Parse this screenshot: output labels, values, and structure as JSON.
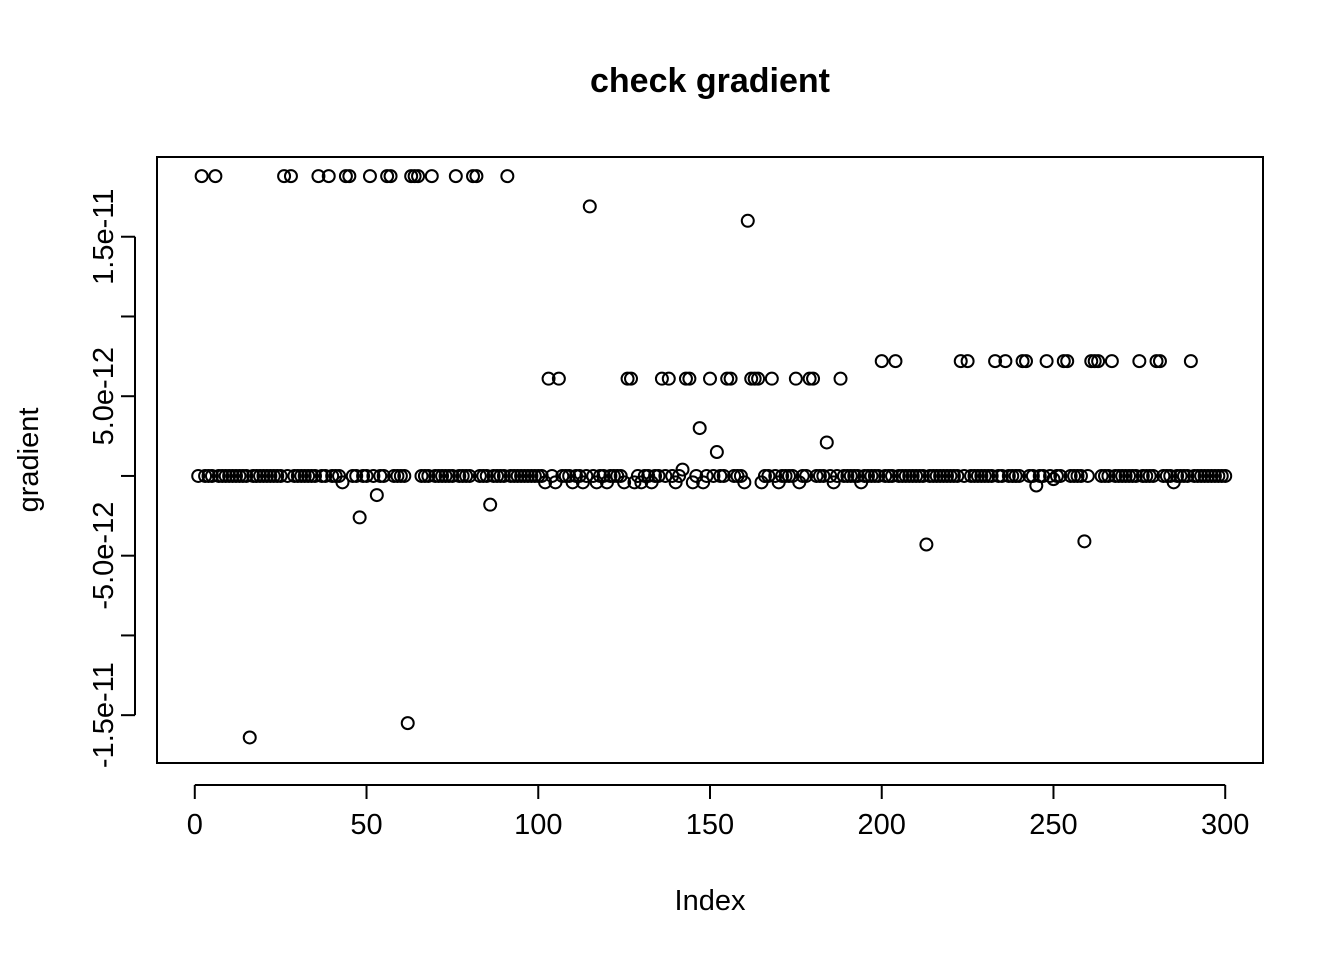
{
  "chart_data": {
    "type": "scatter",
    "title": "check gradient",
    "xlabel": "Index",
    "ylabel": "gradient",
    "xlim": [
      -11,
      311
    ],
    "ylim": [
      -1.8e-11,
      2e-11
    ],
    "x_ticks": [
      0,
      50,
      100,
      150,
      200,
      250,
      300
    ],
    "x_tick_labels": [
      "0",
      "50",
      "100",
      "150",
      "200",
      "250",
      "300"
    ],
    "y_ticks": [
      -1.5e-11,
      -1e-11,
      -5e-12,
      0,
      5e-12,
      1e-11,
      1.5e-11
    ],
    "y_tick_labels": [
      "-1.5e-11",
      "",
      "-5.0e-12",
      "",
      "5.0e-12",
      "",
      "1.5e-11"
    ],
    "grid": false,
    "series": [
      {
        "point_style": "open-circle",
        "x": [
          1,
          2,
          3,
          4,
          5,
          6,
          7,
          8,
          9,
          10,
          11,
          12,
          13,
          14,
          15,
          16,
          17,
          18,
          19,
          20,
          21,
          22,
          23,
          24,
          25,
          26,
          27,
          28,
          29,
          30,
          31,
          32,
          33,
          34,
          35,
          36,
          37,
          38,
          39,
          40,
          41,
          42,
          43,
          44,
          45,
          46,
          47,
          48,
          49,
          50,
          51,
          52,
          53,
          54,
          55,
          56,
          57,
          58,
          59,
          60,
          61,
          62,
          63,
          64,
          65,
          66,
          67,
          68,
          69,
          70,
          71,
          72,
          73,
          74,
          75,
          76,
          77,
          78,
          79,
          80,
          81,
          82,
          83,
          84,
          85,
          86,
          87,
          88,
          89,
          90,
          91,
          92,
          93,
          94,
          95,
          96,
          97,
          98,
          99,
          100,
          101,
          102,
          103,
          104,
          105,
          106,
          107,
          108,
          109,
          110,
          111,
          112,
          113,
          114,
          115,
          116,
          117,
          118,
          119,
          120,
          121,
          122,
          123,
          124,
          125,
          126,
          127,
          128,
          129,
          130,
          131,
          132,
          133,
          134,
          135,
          136,
          137,
          138,
          139,
          140,
          141,
          142,
          143,
          144,
          145,
          146,
          147,
          148,
          149,
          150,
          151,
          152,
          153,
          154,
          155,
          156,
          157,
          158,
          159,
          160,
          161,
          162,
          163,
          164,
          165,
          166,
          167,
          168,
          169,
          170,
          171,
          172,
          173,
          174,
          175,
          176,
          177,
          178,
          179,
          180,
          181,
          182,
          183,
          184,
          185,
          186,
          187,
          188,
          189,
          190,
          191,
          192,
          193,
          194,
          195,
          196,
          197,
          198,
          199,
          200,
          201,
          202,
          203,
          204,
          205,
          206,
          207,
          208,
          209,
          210,
          211,
          212,
          213,
          214,
          215,
          216,
          217,
          218,
          219,
          220,
          221,
          222,
          223,
          224,
          225,
          226,
          227,
          228,
          229,
          230,
          231,
          232,
          233,
          234,
          235,
          236,
          237,
          238,
          239,
          240,
          241,
          242,
          243,
          244,
          245,
          246,
          247,
          248,
          249,
          250,
          251,
          252,
          253,
          254,
          255,
          256,
          257,
          258,
          259,
          260,
          261,
          262,
          263,
          264,
          265,
          266,
          267,
          268,
          269,
          270,
          271,
          272,
          273,
          274,
          275,
          276,
          277,
          278,
          279,
          280,
          281,
          282,
          283,
          284,
          285,
          286,
          287,
          288,
          289,
          290,
          291,
          292,
          293,
          294,
          295,
          296,
          297,
          298,
          299,
          300
        ],
        "y": [
          0,
          1.88e-11,
          0,
          0,
          0,
          1.88e-11,
          0,
          0,
          0,
          0,
          0,
          0,
          0,
          0,
          0,
          -1.64e-11,
          0,
          0,
          0,
          0,
          0,
          0,
          0,
          0,
          0,
          1.88e-11,
          0,
          1.88e-11,
          0,
          0,
          0,
          0,
          0,
          0,
          0,
          1.88e-11,
          0,
          0,
          1.88e-11,
          0,
          0,
          0,
          -4e-13,
          1.88e-11,
          1.88e-11,
          0,
          0,
          -2.6e-12,
          0,
          0,
          1.88e-11,
          0,
          -1.2e-12,
          0,
          0,
          1.88e-11,
          1.88e-11,
          0,
          0,
          0,
          0,
          -1.55e-11,
          1.88e-11,
          1.88e-11,
          1.88e-11,
          0,
          0,
          0,
          1.88e-11,
          0,
          0,
          0,
          0,
          0,
          0,
          1.88e-11,
          0,
          0,
          0,
          0,
          1.88e-11,
          1.88e-11,
          0,
          0,
          0,
          -1.8e-12,
          0,
          0,
          0,
          0,
          1.88e-11,
          0,
          0,
          0,
          0,
          0,
          0,
          0,
          0,
          0,
          0,
          -4e-13,
          6.1e-12,
          0,
          -4e-13,
          6.1e-12,
          0,
          0,
          0,
          -4e-13,
          0,
          0,
          -4e-13,
          0,
          1.69e-11,
          0,
          -4e-13,
          0,
          0,
          -4e-13,
          0,
          0,
          0,
          0,
          -4e-13,
          6.1e-12,
          6.1e-12,
          -4e-13,
          0,
          -4e-13,
          0,
          0,
          -4e-13,
          0,
          0,
          6.1e-12,
          0,
          6.1e-12,
          0,
          -4e-13,
          0,
          4e-13,
          6.1e-12,
          6.1e-12,
          -4e-13,
          0,
          3e-12,
          -4e-13,
          0,
          6.1e-12,
          0,
          1.5e-12,
          0,
          0,
          6.1e-12,
          6.1e-12,
          0,
          0,
          0,
          -4e-13,
          1.6e-11,
          6.1e-12,
          6.1e-12,
          6.1e-12,
          -4e-13,
          0,
          0,
          6.1e-12,
          0,
          -4e-13,
          0,
          0,
          0,
          0,
          6.1e-12,
          -4e-13,
          0,
          0,
          6.1e-12,
          6.1e-12,
          0,
          0,
          0,
          2.1e-12,
          0,
          -4e-13,
          0,
          6.1e-12,
          0,
          0,
          0,
          0,
          0,
          -4e-13,
          0,
          0,
          0,
          0,
          0,
          7.2e-12,
          0,
          0,
          0,
          7.2e-12,
          0,
          0,
          0,
          0,
          0,
          0,
          0,
          0,
          -4.3e-12,
          0,
          0,
          0,
          0,
          0,
          0,
          0,
          0,
          0,
          7.2e-12,
          0,
          7.2e-12,
          0,
          0,
          0,
          0,
          0,
          0,
          0,
          7.2e-12,
          0,
          0,
          7.2e-12,
          0,
          0,
          0,
          0,
          7.2e-12,
          7.2e-12,
          0,
          0,
          -6e-13,
          0,
          0,
          7.2e-12,
          0,
          -2e-13,
          0,
          0,
          7.2e-12,
          7.2e-12,
          0,
          0,
          0,
          0,
          -4.1e-12,
          0,
          7.2e-12,
          7.2e-12,
          7.2e-12,
          0,
          0,
          0,
          7.2e-12,
          0,
          0,
          0,
          0,
          0,
          0,
          0,
          7.2e-12,
          0,
          0,
          0,
          0,
          7.2e-12,
          7.2e-12,
          0,
          0,
          0,
          -4e-13,
          0,
          0,
          0,
          0,
          7.2e-12,
          0,
          0,
          0,
          0,
          0,
          0,
          0,
          0,
          0,
          0
        ]
      }
    ]
  }
}
